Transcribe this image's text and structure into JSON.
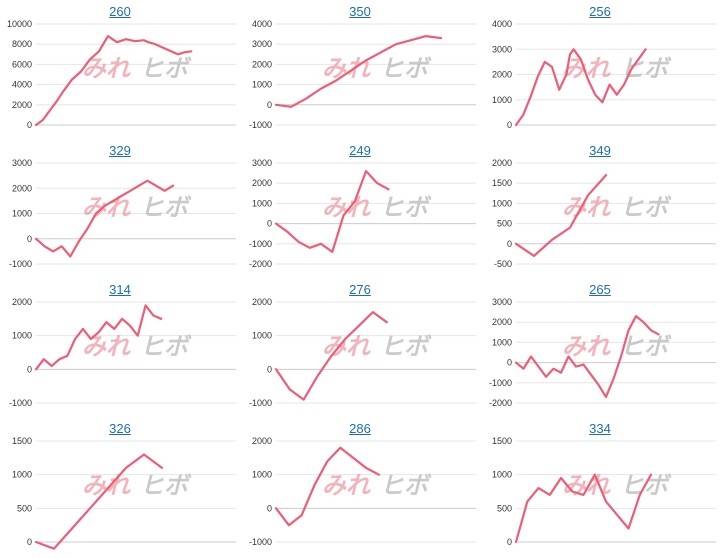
{
  "watermark": {
    "left": "みれ",
    "right": "ヒボ"
  },
  "colors": {
    "line": "#ef5c74",
    "title": "#1a6fb8",
    "grid": "#e6e6e6",
    "axis": "#cccccc"
  },
  "chart_data": [
    {
      "type": "line",
      "title": "260",
      "ylim": [
        0,
        10000
      ],
      "yticks": [
        0,
        2000,
        4000,
        6000,
        8000,
        10000
      ],
      "x": [
        0,
        3,
        6,
        9,
        12,
        16,
        20,
        24,
        28,
        32,
        36,
        40,
        44,
        48,
        50,
        53,
        56,
        60,
        63,
        66,
        69,
        72,
        75,
        78,
        80
      ],
      "values": [
        0,
        500,
        1400,
        2300,
        3300,
        4500,
        5300,
        6500,
        7300,
        8800,
        8200,
        8500,
        8300,
        8400,
        8200,
        8000,
        7700,
        7300,
        7000,
        7200,
        7300,
        null,
        null,
        null,
        null
      ]
    },
    {
      "type": "line",
      "title": "350",
      "ylim": [
        -1000,
        4000
      ],
      "yticks": [
        -1000,
        0,
        1000,
        2000,
        3000,
        4000
      ],
      "x": [
        0,
        2,
        4,
        6,
        8,
        10,
        12,
        14,
        16,
        18,
        20,
        22,
        24
      ],
      "values": [
        0,
        -100,
        300,
        800,
        1200,
        1700,
        2200,
        2600,
        3000,
        3200,
        3400,
        3300,
        null
      ]
    },
    {
      "type": "line",
      "title": "256",
      "ylim": [
        0,
        4000
      ],
      "yticks": [
        0,
        1000,
        2000,
        3000,
        4000
      ],
      "x": [
        0,
        4,
        8,
        12,
        16,
        20,
        24,
        28,
        30,
        32,
        36,
        40,
        44,
        48,
        52,
        56,
        60,
        64,
        68,
        72,
        76,
        80,
        84,
        88,
        92,
        96,
        100
      ],
      "values": [
        0,
        400,
        1100,
        1900,
        2500,
        2300,
        1400,
        2000,
        2800,
        3000,
        2600,
        1800,
        1200,
        900,
        1600,
        1200,
        1600,
        2200,
        2600,
        3000,
        null,
        null,
        null,
        null,
        null,
        null,
        null
      ]
    },
    {
      "type": "line",
      "title": "329",
      "ylim": [
        -1000,
        3000
      ],
      "yticks": [
        -1000,
        0,
        1000,
        2000,
        3000
      ],
      "x": [
        0,
        3,
        6,
        9,
        12,
        15,
        18,
        21,
        24,
        27,
        30,
        33,
        36,
        39,
        42,
        45,
        48,
        51,
        54,
        57,
        60,
        63
      ],
      "values": [
        0,
        -300,
        -500,
        -300,
        -700,
        -100,
        400,
        1000,
        1300,
        1500,
        1700,
        1900,
        2100,
        2300,
        2100,
        1900,
        2100,
        null,
        null,
        null,
        null,
        null
      ]
    },
    {
      "type": "line",
      "title": "249",
      "ylim": [
        -2000,
        3000
      ],
      "yticks": [
        -2000,
        -1000,
        0,
        1000,
        2000,
        3000
      ],
      "x": [
        0,
        3,
        6,
        9,
        12,
        15,
        18,
        21,
        24,
        27,
        30,
        33,
        36,
        39,
        42,
        45,
        48
      ],
      "values": [
        0,
        -400,
        -900,
        -1200,
        -1000,
        -1400,
        400,
        1100,
        2600,
        2000,
        1700,
        null,
        null,
        null,
        null,
        null,
        null
      ]
    },
    {
      "type": "line",
      "title": "349",
      "ylim": [
        -500,
        2000
      ],
      "yticks": [
        -500,
        0,
        500,
        1000,
        1500,
        2000
      ],
      "x": [
        0,
        2,
        4,
        6,
        8,
        10,
        12,
        14,
        16,
        18,
        20
      ],
      "values": [
        0,
        -300,
        100,
        400,
        1200,
        1700,
        null,
        null,
        null,
        null,
        null
      ]
    },
    {
      "type": "line",
      "title": "314",
      "ylim": [
        -1000,
        2000
      ],
      "yticks": [
        -1000,
        0,
        1000,
        2000
      ],
      "x": [
        0,
        3,
        6,
        9,
        12,
        15,
        18,
        21,
        24,
        27,
        30,
        33,
        36,
        39,
        42,
        45,
        48,
        51,
        54,
        57,
        60,
        63,
        66,
        69
      ],
      "values": [
        0,
        300,
        100,
        300,
        400,
        900,
        1200,
        900,
        1100,
        1400,
        1200,
        1500,
        1300,
        1000,
        1900,
        1600,
        1500,
        null,
        null,
        null,
        null,
        null,
        null,
        null
      ]
    },
    {
      "type": "line",
      "title": "276",
      "ylim": [
        -1000,
        2000
      ],
      "yticks": [
        -1000,
        0,
        1000,
        2000
      ],
      "x": [
        0,
        3,
        6,
        9,
        12,
        15,
        18,
        21,
        24,
        27,
        30,
        33,
        36,
        39
      ],
      "values": [
        0,
        -600,
        -900,
        -200,
        400,
        900,
        1300,
        1700,
        1400,
        null,
        null,
        null,
        null,
        null
      ]
    },
    {
      "type": "line",
      "title": "265",
      "ylim": [
        -2000,
        3000
      ],
      "yticks": [
        -2000,
        -1000,
        0,
        1000,
        2000,
        3000
      ],
      "x": [
        0,
        3,
        6,
        9,
        12,
        15,
        18,
        21,
        24,
        27,
        30,
        33,
        36,
        39,
        42,
        45,
        48,
        51,
        54,
        57,
        60,
        63,
        66,
        69,
        72
      ],
      "values": [
        0,
        -300,
        300,
        -200,
        -700,
        -300,
        -500,
        300,
        -200,
        -100,
        -600,
        -1100,
        -1700,
        -800,
        300,
        1600,
        2300,
        2000,
        1600,
        1400,
        null,
        null,
        null,
        null,
        null
      ]
    },
    {
      "type": "line",
      "title": "326",
      "ylim": [
        0,
        1500
      ],
      "yticks": [
        0,
        500,
        1000,
        1500
      ],
      "x": [
        0,
        2,
        4,
        6,
        8,
        10,
        12,
        14,
        16,
        18,
        20
      ],
      "values": [
        0,
        -100,
        200,
        500,
        800,
        1100,
        1300,
        1100,
        null,
        null,
        null
      ]
    },
    {
      "type": "line",
      "title": "286",
      "ylim": [
        -1000,
        2000
      ],
      "yticks": [
        -1000,
        0,
        1000,
        2000
      ],
      "x": [
        0,
        3,
        6,
        9,
        12,
        15,
        18,
        21,
        24,
        27,
        30,
        33,
        36,
        39,
        42
      ],
      "values": [
        0,
        -500,
        -200,
        700,
        1400,
        1800,
        1500,
        1200,
        1000,
        null,
        null,
        null,
        null,
        null,
        null
      ]
    },
    {
      "type": "line",
      "title": "334",
      "ylim": [
        0,
        1500
      ],
      "yticks": [
        0,
        500,
        1000,
        1500
      ],
      "x": [
        0,
        3,
        6,
        9,
        12,
        15,
        18,
        21,
        24,
        27,
        30,
        33,
        36,
        39,
        42,
        45,
        48
      ],
      "values": [
        0,
        600,
        800,
        700,
        950,
        750,
        700,
        1000,
        600,
        400,
        200,
        700,
        1000,
        null,
        null,
        null,
        null
      ]
    }
  ]
}
